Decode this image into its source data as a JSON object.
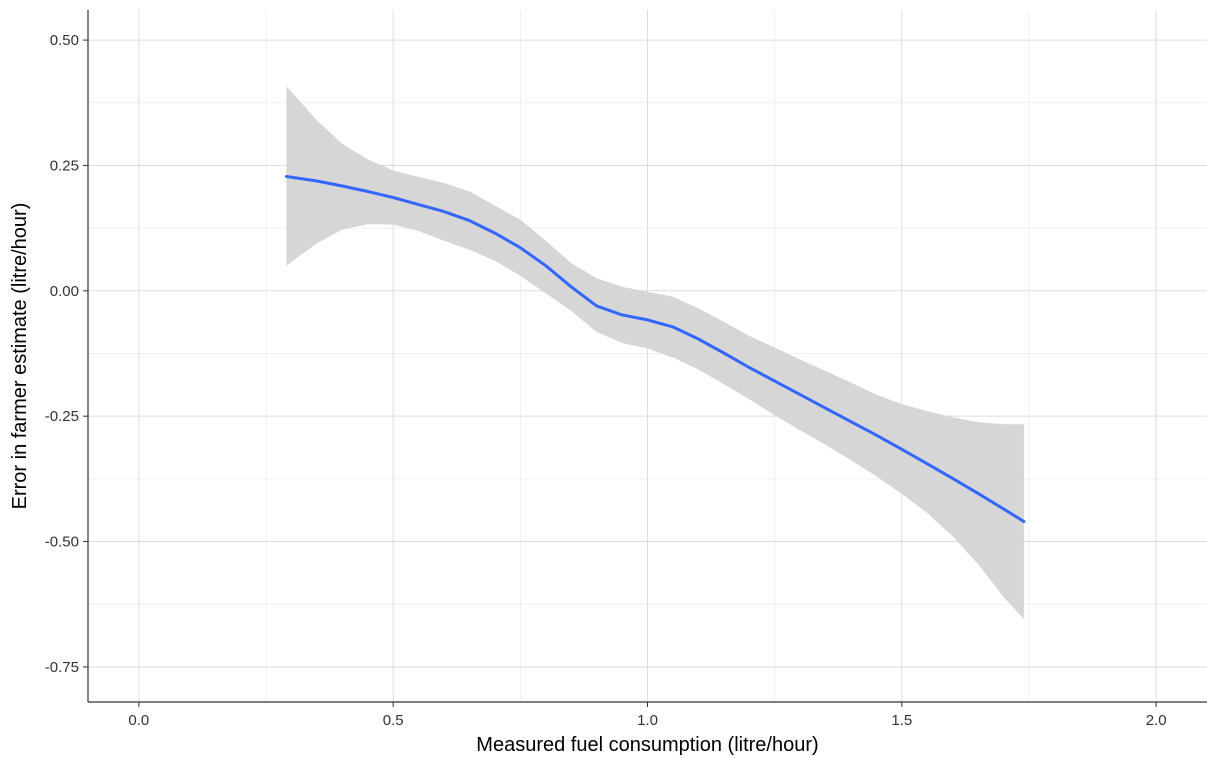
{
  "chart_data": {
    "type": "line",
    "title": "",
    "xlabel": "Measured fuel consumption (litre/hour)",
    "ylabel": "Error in farmer estimate (litre/hour)",
    "xlim": [
      -0.1,
      2.1
    ],
    "ylim": [
      -0.82,
      0.56
    ],
    "x_ticks": [
      0.0,
      0.5,
      1.0,
      1.5,
      2.0
    ],
    "x_tick_labels": [
      "0.0",
      "0.5",
      "1.0",
      "1.5",
      "2.0"
    ],
    "y_ticks": [
      -0.75,
      -0.5,
      -0.25,
      0.0,
      0.25,
      0.5
    ],
    "y_tick_labels": [
      "-0.75",
      "-0.50",
      "-0.25",
      "0.00",
      "0.25",
      "0.50"
    ],
    "grid": true,
    "line_color": "#3366FF",
    "band_color": "#D6D6D6",
    "series": [
      {
        "x": [
          0.29,
          0.35,
          0.4,
          0.45,
          0.5,
          0.55,
          0.6,
          0.65,
          0.7,
          0.75,
          0.8,
          0.85,
          0.9,
          0.95,
          1.0,
          1.05,
          1.1,
          1.15,
          1.2,
          1.25,
          1.3,
          1.35,
          1.4,
          1.45,
          1.5,
          1.55,
          1.6,
          1.65,
          1.7,
          1.74
        ],
        "y": [
          0.228,
          0.219,
          0.209,
          0.198,
          0.186,
          0.172,
          0.158,
          0.14,
          0.115,
          0.086,
          0.05,
          0.008,
          -0.03,
          -0.048,
          -0.058,
          -0.072,
          -0.096,
          -0.124,
          -0.153,
          -0.18,
          -0.207,
          -0.234,
          -0.261,
          -0.288,
          -0.316,
          -0.345,
          -0.374,
          -0.404,
          -0.435,
          -0.46
        ],
        "lower": [
          0.05,
          0.095,
          0.122,
          0.133,
          0.132,
          0.119,
          0.1,
          0.082,
          0.06,
          0.03,
          -0.005,
          -0.04,
          -0.082,
          -0.104,
          -0.115,
          -0.133,
          -0.157,
          -0.186,
          -0.216,
          -0.248,
          -0.278,
          -0.307,
          -0.338,
          -0.37,
          -0.405,
          -0.443,
          -0.49,
          -0.545,
          -0.61,
          -0.655
        ],
        "upper": [
          0.408,
          0.34,
          0.293,
          0.262,
          0.24,
          0.227,
          0.215,
          0.198,
          0.17,
          0.142,
          0.1,
          0.055,
          0.025,
          0.008,
          -0.002,
          -0.012,
          -0.035,
          -0.062,
          -0.09,
          -0.113,
          -0.137,
          -0.16,
          -0.183,
          -0.207,
          -0.226,
          -0.24,
          -0.252,
          -0.262,
          -0.266,
          -0.266
        ]
      }
    ]
  }
}
